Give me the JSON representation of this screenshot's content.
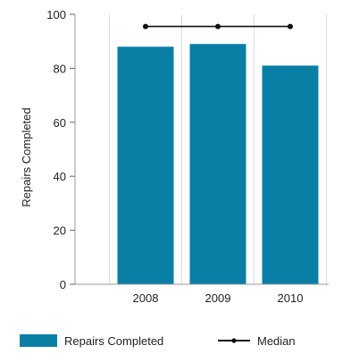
{
  "chart_data": {
    "type": "bar",
    "categories": [
      "2008",
      "2009",
      "2010"
    ],
    "series": [
      {
        "name": "Repairs Completed",
        "values": [
          88,
          89,
          81
        ],
        "color": "#0a7fa6"
      },
      {
        "name": "Median",
        "values": [
          95.5,
          95.5,
          95.5
        ],
        "color": "#111111",
        "style": "line-with-markers"
      }
    ],
    "ylabel": "Repairs Completed",
    "xlabel": "",
    "ylim": [
      0,
      100
    ],
    "yticks": [
      0,
      20,
      40,
      60,
      80,
      100
    ],
    "grid": "vertical",
    "legend_position": "bottom-left"
  }
}
